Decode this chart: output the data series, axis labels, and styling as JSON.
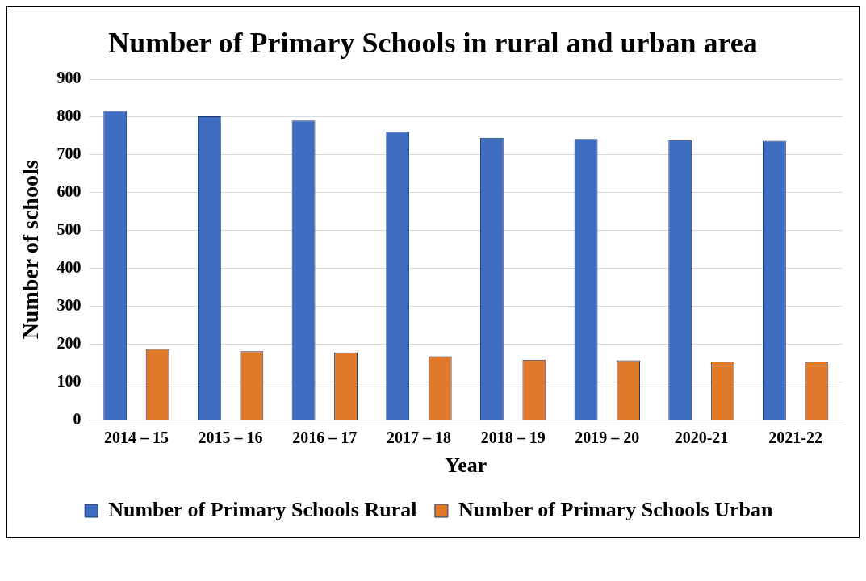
{
  "chart_data": {
    "type": "bar",
    "title": "Number of Primary Schools in rural and urban area",
    "xlabel": "Year",
    "ylabel": "Number of schools",
    "categories": [
      "2014 – 15",
      "2015 – 16",
      "2016 – 17",
      "2017 – 18",
      "2018 – 19",
      "2019 – 20",
      "2020-21",
      "2021-22"
    ],
    "series": [
      {
        "name": "Number of Primary Schools Rural",
        "color": "#3d6cc0",
        "values": [
          816,
          802,
          791,
          761,
          745,
          742,
          739,
          737
        ]
      },
      {
        "name": "Number of Primary Schools Urban",
        "color": "#e07a2a",
        "values": [
          188,
          182,
          179,
          169,
          160,
          158,
          155,
          155
        ]
      }
    ],
    "ylim": [
      0,
      900
    ],
    "yticks": [
      0,
      100,
      200,
      300,
      400,
      500,
      600,
      700,
      800,
      900
    ],
    "grid": "y",
    "legend": "bottom"
  }
}
